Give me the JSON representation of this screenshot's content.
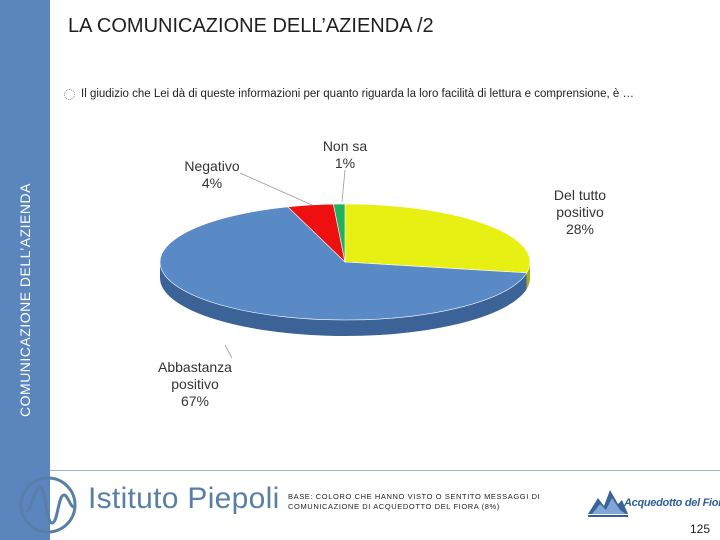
{
  "header": {
    "title": "LA COMUNICAZIONE DELL’AZIENDA /2",
    "side_title": "COMUNICAZIONE DELL’AZIENDA"
  },
  "question": "Il giudizio che Lei dà di queste informazioni per quanto riguarda la loro facilità di lettura e comprensione, è …",
  "chart_data": {
    "type": "pie",
    "title": "",
    "slices": [
      {
        "label_lines": [
          "Del tutto",
          "positivo"
        ],
        "value": 28,
        "value_label": "28%",
        "color": "#e8ef12",
        "side_color": "#a7ab0c"
      },
      {
        "label_lines": [
          "Abbastanza",
          "positivo"
        ],
        "value": 67,
        "value_label": "67%",
        "color": "#5a8ac6",
        "side_color": "#3b6398"
      },
      {
        "label_lines": [
          "Negativo"
        ],
        "value": 4,
        "value_label": "4%",
        "color": "#ee1010",
        "side_color": "#a80b0b"
      },
      {
        "label_lines": [
          "Non sa"
        ],
        "value": 1,
        "value_label": "1%",
        "color": "#1fb25a",
        "side_color": "#137a3c"
      }
    ]
  },
  "footer": {
    "brand": "Istituto Piepoli",
    "base_note": "BASE: COLORO CHE HANNO VISTO O SENTITO MESSAGGI DI COMUNICAZIONE DI ACQUEDOTTO DEL FIORA (8%)",
    "partner": "Acquedotto del Fiora",
    "page_number": "125"
  },
  "colors": {
    "sidebar": "#5b86bd",
    "brand_text": "#5a7fa6"
  }
}
